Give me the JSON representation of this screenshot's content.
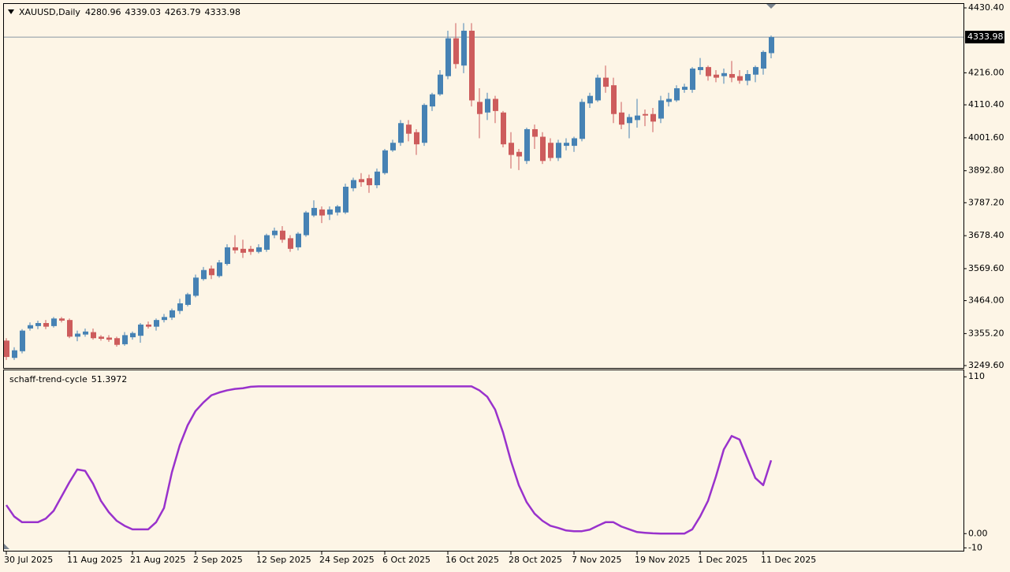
{
  "chart_data": [
    {
      "type": "candlestick",
      "title": "XAUUSD,Daily",
      "open": [
        3332,
        3275,
        3297,
        3372,
        3380,
        3390,
        3380,
        3405,
        3400,
        3345,
        3352,
        3360,
        3345,
        3342,
        3340,
        3320,
        3343,
        3348,
        3385,
        3378,
        3400,
        3408,
        3430,
        3450,
        3480,
        3535,
        3570,
        3545,
        3585,
        3640,
        3635,
        3635,
        3625,
        3632,
        3680,
        3695,
        3670,
        3640,
        3680,
        3745,
        3765,
        3748,
        3755,
        3755,
        3835,
        3865,
        3868,
        3845,
        3885,
        3960,
        3985,
        4045,
        4020,
        3985,
        4105,
        4145,
        4205,
        4330,
        4240,
        4355,
        4120,
        4085,
        4130,
        4085,
        3985,
        3955,
        3925,
        4030,
        4005,
        3985,
        3935,
        3975,
        3975,
        3998,
        4115,
        4125,
        4200,
        4175,
        4085,
        4050,
        4060,
        4080,
        4080,
        4065,
        4120,
        4125,
        4160,
        4160,
        4225,
        4235,
        4210,
        4205,
        4212,
        4205,
        4190,
        4210,
        4230,
        4280.96
      ],
      "high": [
        3340,
        3310,
        3370,
        3392,
        3398,
        3400,
        3410,
        3410,
        3405,
        3365,
        3372,
        3372,
        3350,
        3350,
        3345,
        3360,
        3362,
        3390,
        3395,
        3405,
        3420,
        3438,
        3470,
        3490,
        3550,
        3575,
        3580,
        3598,
        3650,
        3680,
        3665,
        3645,
        3650,
        3685,
        3705,
        3710,
        3680,
        3690,
        3760,
        3795,
        3775,
        3775,
        3780,
        3850,
        3870,
        3885,
        3880,
        3900,
        3965,
        3995,
        4060,
        4060,
        4030,
        4115,
        4150,
        4225,
        4355,
        4380,
        4380,
        4380,
        4165,
        4150,
        4140,
        4090,
        4020,
        3965,
        4035,
        4045,
        4020,
        4000,
        3995,
        4000,
        4005,
        4130,
        4150,
        4210,
        4240,
        4200,
        4120,
        4080,
        4130,
        4095,
        4100,
        4140,
        4150,
        4175,
        4180,
        4235,
        4265,
        4240,
        4225,
        4230,
        4255,
        4225,
        4225,
        4240,
        4290,
        4339.03
      ],
      "low": [
        3268,
        3268,
        3290,
        3365,
        3370,
        3370,
        3375,
        3392,
        3340,
        3330,
        3345,
        3335,
        3332,
        3328,
        3312,
        3315,
        3335,
        3325,
        3372,
        3365,
        3392,
        3400,
        3420,
        3445,
        3475,
        3530,
        3535,
        3540,
        3580,
        3620,
        3605,
        3615,
        3620,
        3625,
        3670,
        3655,
        3625,
        3630,
        3675,
        3740,
        3720,
        3730,
        3745,
        3750,
        3825,
        3840,
        3820,
        3835,
        3880,
        3955,
        3975,
        3990,
        3945,
        3975,
        4090,
        4140,
        4195,
        4230,
        4215,
        4105,
        4000,
        4060,
        4050,
        3970,
        3900,
        3895,
        3915,
        3965,
        3915,
        3925,
        3925,
        3960,
        3955,
        3990,
        4100,
        4120,
        4150,
        4050,
        4030,
        4000,
        4035,
        4040,
        4020,
        4050,
        4105,
        4120,
        4150,
        4150,
        4210,
        4190,
        4185,
        4180,
        4185,
        4180,
        4175,
        4185,
        4210,
        4263.79
      ],
      "close": [
        3278,
        3300,
        3365,
        3383,
        3390,
        3378,
        3405,
        3398,
        3345,
        3355,
        3362,
        3340,
        3338,
        3335,
        3318,
        3350,
        3357,
        3385,
        3378,
        3400,
        3410,
        3432,
        3455,
        3485,
        3540,
        3565,
        3548,
        3590,
        3640,
        3630,
        3622,
        3625,
        3640,
        3680,
        3695,
        3665,
        3635,
        3685,
        3755,
        3770,
        3745,
        3765,
        3775,
        3840,
        3862,
        3855,
        3845,
        3890,
        3960,
        3985,
        4050,
        4015,
        3980,
        4110,
        4145,
        4210,
        4330,
        4245,
        4355,
        4125,
        4080,
        4130,
        4090,
        3980,
        3945,
        3940,
        4030,
        4005,
        3925,
        3935,
        3985,
        3985,
        4000,
        4120,
        4140,
        4200,
        4170,
        4080,
        4045,
        4070,
        4075,
        4075,
        4055,
        4125,
        4130,
        4165,
        4170,
        4230,
        4235,
        4205,
        4200,
        4215,
        4200,
        4190,
        4212,
        4235,
        4285,
        4333.98
      ],
      "up_color": "#4682b4",
      "down_color": "#cd5c5c",
      "ylim": [
        3241.8,
        4443.4
      ],
      "yticks": [
        {
          "value": 4430.4,
          "label": "4430.40"
        },
        {
          "value": 4216,
          "label": "4216.00"
        },
        {
          "value": 4110.4,
          "label": "4110.40"
        },
        {
          "value": 4001.6,
          "label": "4001.60"
        },
        {
          "value": 3892.8,
          "label": "3892.80"
        },
        {
          "value": 3787.2,
          "label": "3787.20"
        },
        {
          "value": 3678.4,
          "label": "3678.40"
        },
        {
          "value": 3569.6,
          "label": "3569.60"
        },
        {
          "value": 3464,
          "label": "3464.00"
        },
        {
          "value": 3355.2,
          "label": "3355.20"
        },
        {
          "value": 3249.6,
          "label": "3249.60"
        }
      ]
    },
    {
      "type": "line",
      "title": "schaff-trend-cycle",
      "color": "#9932cc",
      "categories": [
        "30 Jul 2025",
        null,
        null,
        null,
        null,
        null,
        null,
        null,
        "11 Aug 2025",
        null,
        null,
        null,
        null,
        null,
        null,
        null,
        "21 Aug 2025",
        null,
        null,
        null,
        null,
        null,
        null,
        null,
        "2 Sep 2025",
        null,
        null,
        null,
        null,
        null,
        null,
        null,
        "12 Sep 2025",
        null,
        null,
        null,
        null,
        null,
        null,
        null,
        "24 Sep 2025",
        null,
        null,
        null,
        null,
        null,
        null,
        null,
        "6 Oct 2025",
        null,
        null,
        null,
        null,
        null,
        null,
        null,
        "16 Oct 2025",
        null,
        null,
        null,
        null,
        null,
        null,
        null,
        "28 Oct 2025",
        null,
        null,
        null,
        null,
        null,
        null,
        null,
        "7 Nov 2025",
        null,
        null,
        null,
        null,
        null,
        null,
        null,
        "19 Nov 2025",
        null,
        null,
        null,
        null,
        null,
        null,
        null,
        "1 Dec 2025",
        null,
        null,
        null,
        null,
        null,
        null,
        null,
        "11 Dec 2025",
        null
      ],
      "values": [
        20,
        12,
        8,
        8,
        8,
        10.5,
        16,
        26,
        36,
        45,
        44,
        35,
        23,
        15,
        9,
        5.5,
        3,
        3,
        3,
        8,
        18,
        43,
        62,
        76,
        86,
        92,
        97,
        99,
        100.5,
        101.5,
        102,
        103,
        103.3,
        103.3,
        103.3,
        103.3,
        103.3,
        103.3,
        103.3,
        103.3,
        103.3,
        103.3,
        103.3,
        103.3,
        103.3,
        103.3,
        103.3,
        103.3,
        103.3,
        103.3,
        103.3,
        103.3,
        103.3,
        103.3,
        103.3,
        103.3,
        103.3,
        103.3,
        103.3,
        103.3,
        100.5,
        96,
        87,
        71,
        51,
        34,
        22,
        14,
        9,
        5.5,
        4,
        2.2,
        1.7,
        1.7,
        2.8,
        5.5,
        8,
        8,
        5,
        3,
        1.1,
        0.6,
        0.2,
        0,
        0,
        0,
        0,
        3,
        12,
        23,
        40,
        59,
        68.5,
        66,
        52.5,
        39,
        34,
        51.3972
      ],
      "ylim": [
        -12,
        114
      ],
      "yticks": [
        110,
        {
          "value": 0,
          "label": "0.00"
        },
        -10
      ]
    }
  ]
}
